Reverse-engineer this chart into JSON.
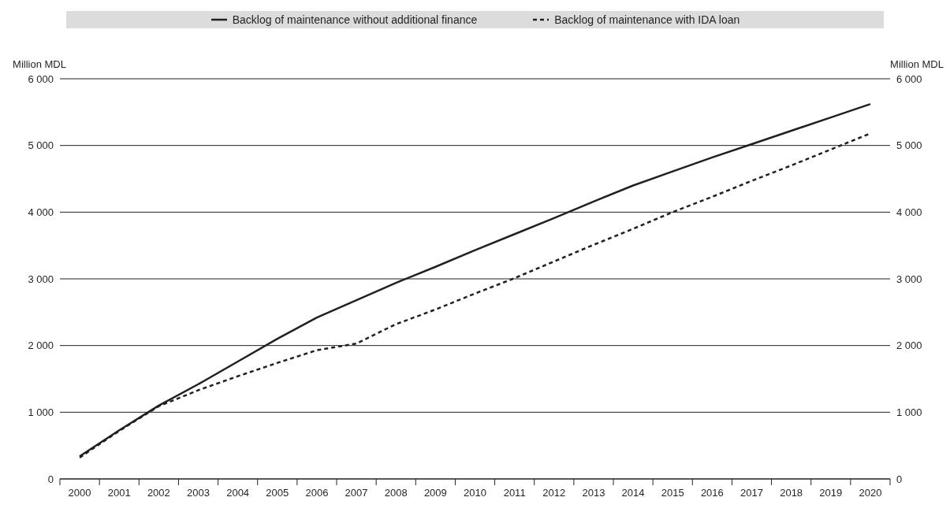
{
  "chart_data": {
    "type": "line",
    "ylabel": "Million MDL",
    "y2label": "Million MDL",
    "categories": [
      "2000",
      "2001",
      "2002",
      "2003",
      "2004",
      "2005",
      "2006",
      "2007",
      "2008",
      "2009",
      "2010",
      "2011",
      "2012",
      "2013",
      "2014",
      "2015",
      "2016",
      "2017",
      "2018",
      "2019",
      "2020"
    ],
    "series": [
      {
        "name": "Backlog of maintenance without additional finance",
        "color": "#231f20",
        "line_style": "solid",
        "values": [
          340,
          730,
          1100,
          1420,
          1760,
          2100,
          2420,
          2680,
          2940,
          3180,
          3430,
          3670,
          3910,
          4160,
          4400,
          4610,
          4820,
          5020,
          5220,
          5420,
          5620
        ]
      },
      {
        "name": "Backlog of maintenance with IDA loan",
        "color": "#231f20",
        "line_style": "dashed",
        "values": [
          320,
          720,
          1090,
          1330,
          1540,
          1740,
          1930,
          2030,
          2320,
          2540,
          2780,
          3010,
          3260,
          3510,
          3750,
          4000,
          4230,
          4470,
          4700,
          4940,
          5180
        ]
      }
    ],
    "ylim": [
      0,
      6000
    ],
    "yticks": [
      {
        "value": 0,
        "label": "0"
      },
      {
        "value": 1000,
        "label": "1 000"
      },
      {
        "value": 2000,
        "label": "2 000"
      },
      {
        "value": 3000,
        "label": "3 000"
      },
      {
        "value": 4000,
        "label": "4 000"
      },
      {
        "value": 5000,
        "label": "5 000"
      },
      {
        "value": 6000,
        "label": "6 000"
      }
    ],
    "y2lim": [
      0,
      6000
    ],
    "y2ticks": [
      {
        "value": 0,
        "label": "0"
      },
      {
        "value": 1000,
        "label": "1 000"
      },
      {
        "value": 2000,
        "label": "2 000"
      },
      {
        "value": 3000,
        "label": "3 000"
      },
      {
        "value": 4000,
        "label": "4 000"
      },
      {
        "value": 5000,
        "label": "5 000"
      },
      {
        "value": 6000,
        "label": "6 000"
      }
    ],
    "grid": "y",
    "legend": "top",
    "marker": "none"
  }
}
